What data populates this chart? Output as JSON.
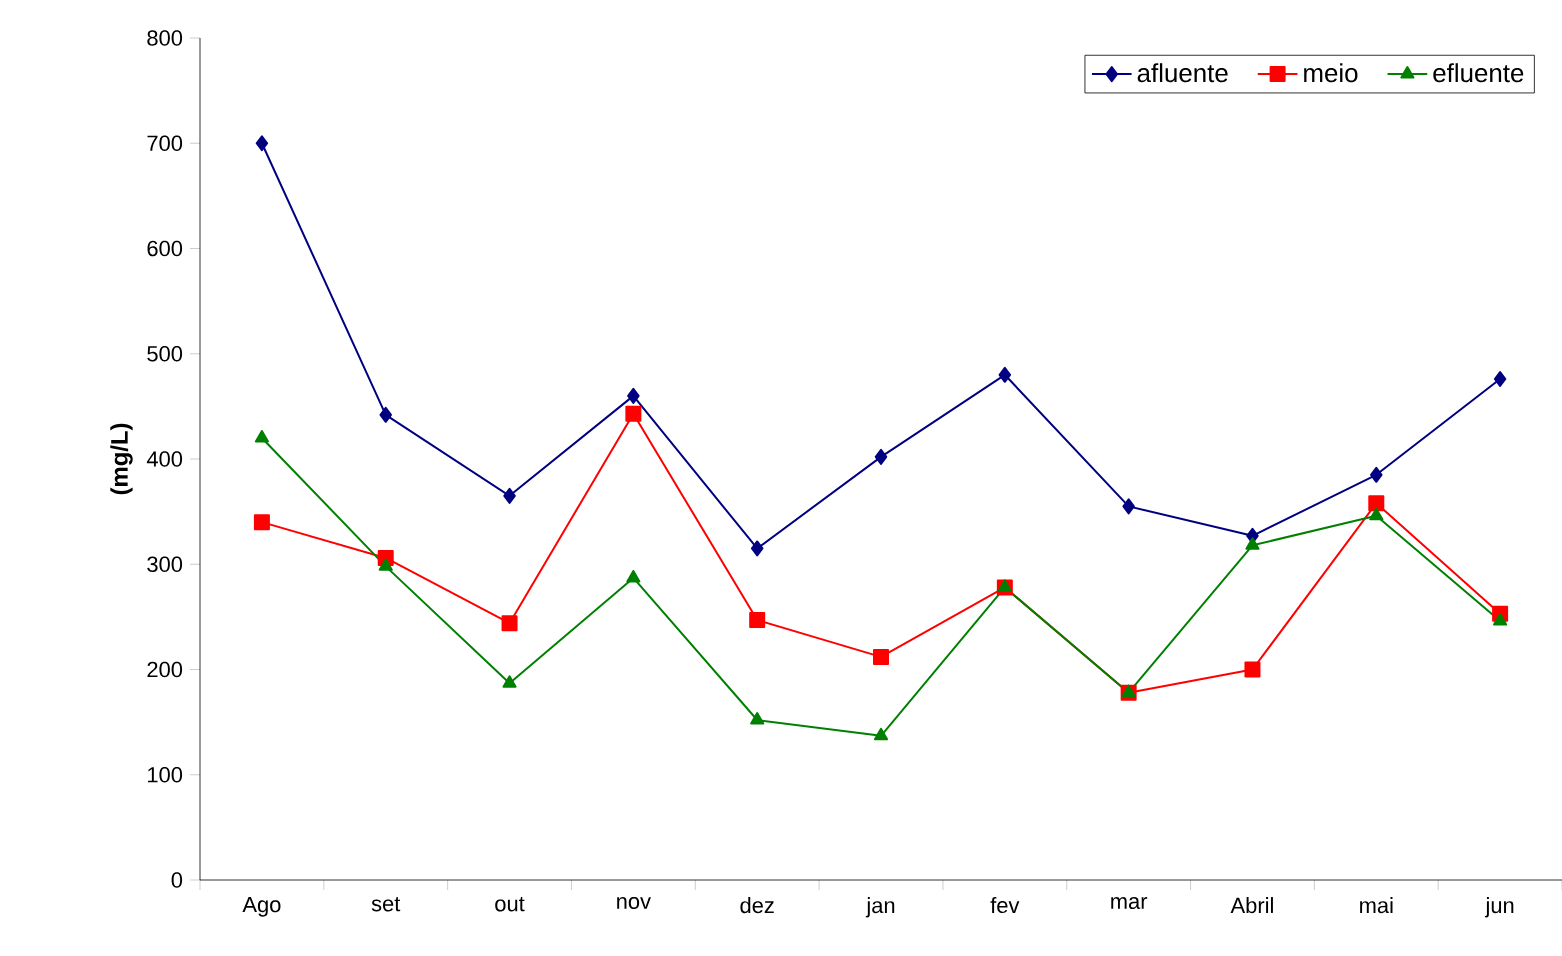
{
  "chart_data": {
    "type": "line",
    "ylabel": "(mg/L)",
    "categories": [
      "Ago",
      "set",
      "out",
      "nov",
      "dez",
      "jan",
      "fev",
      "mar",
      "Abril",
      "mai",
      "jun"
    ],
    "series": [
      {
        "name": "afluente",
        "color": "#000080",
        "marker": "diamond",
        "values": [
          700,
          442,
          365,
          460,
          315,
          402,
          480,
          355,
          327,
          385,
          476
        ]
      },
      {
        "name": "meio",
        "color": "#ff0000",
        "marker": "square",
        "values": [
          340,
          306,
          244,
          443,
          247,
          212,
          278,
          178,
          200,
          358,
          253
        ]
      },
      {
        "name": "efluente",
        "color": "#008000",
        "marker": "triangle",
        "values": [
          420,
          298,
          187,
          287,
          152,
          137,
          278,
          178,
          318,
          346,
          246
        ]
      }
    ],
    "ylim": [
      0,
      800
    ],
    "yticks": [
      0,
      100,
      200,
      300,
      400,
      500,
      600,
      700,
      800
    ],
    "grid": false,
    "legend": "top right"
  }
}
